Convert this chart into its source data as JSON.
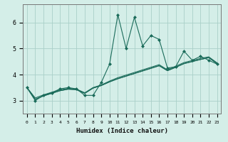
{
  "xlabel": "Humidex (Indice chaleur)",
  "bg_color": "#d4eee8",
  "grid_color": "#aacfc8",
  "line_color": "#1a6b5a",
  "xlim": [
    -0.5,
    23.5
  ],
  "ylim": [
    2.5,
    6.7
  ],
  "yticks": [
    3,
    4,
    5,
    6
  ],
  "xticks": [
    0,
    1,
    2,
    3,
    4,
    5,
    6,
    7,
    8,
    9,
    10,
    11,
    12,
    13,
    14,
    15,
    16,
    17,
    18,
    19,
    20,
    21,
    22,
    23
  ],
  "jagged": [
    3.5,
    3.0,
    3.2,
    3.3,
    3.45,
    3.5,
    3.45,
    3.2,
    3.2,
    3.7,
    4.4,
    6.3,
    5.0,
    6.2,
    5.1,
    5.5,
    5.35,
    4.25,
    4.3,
    4.9,
    4.55,
    4.7,
    4.55,
    4.4
  ],
  "smooth1": [
    3.5,
    3.05,
    3.18,
    3.28,
    3.38,
    3.44,
    3.42,
    3.28,
    3.48,
    3.58,
    3.72,
    3.84,
    3.94,
    4.04,
    4.14,
    4.24,
    4.34,
    4.15,
    4.28,
    4.42,
    4.5,
    4.58,
    4.65,
    4.42
  ],
  "smooth2": [
    3.5,
    3.05,
    3.18,
    3.28,
    3.38,
    3.44,
    3.42,
    3.28,
    3.48,
    3.58,
    3.72,
    3.84,
    3.94,
    4.04,
    4.14,
    4.24,
    4.34,
    4.15,
    4.28,
    4.42,
    4.5,
    4.58,
    4.65,
    4.42
  ],
  "smooth3": [
    3.5,
    3.1,
    3.22,
    3.32,
    3.41,
    3.47,
    3.44,
    3.3,
    3.5,
    3.6,
    3.75,
    3.88,
    3.98,
    4.08,
    4.18,
    4.28,
    4.38,
    4.18,
    4.32,
    4.46,
    4.54,
    4.62,
    4.68,
    4.45
  ]
}
